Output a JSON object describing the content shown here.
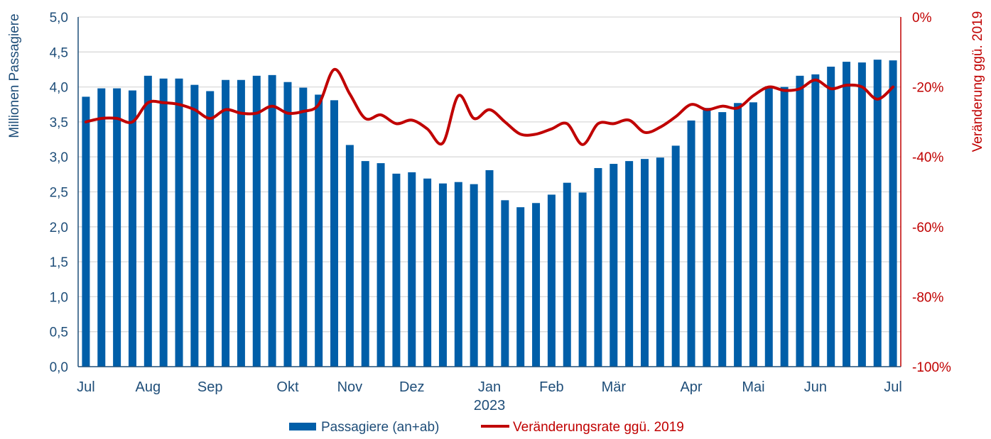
{
  "chart_data": {
    "type": "bar",
    "title": "",
    "ylabel": "Millionen Passagiere",
    "y2label": "Veränderung ggü. 2019",
    "ylim": [
      0,
      5
    ],
    "y2lim": [
      -100,
      0
    ],
    "yticks": [
      "0,0",
      "0,5",
      "1,0",
      "1,5",
      "2,0",
      "2,5",
      "3,0",
      "3,5",
      "4,0",
      "4,5",
      "5,0"
    ],
    "y2ticks": [
      "-100%",
      "-80%",
      "-60%",
      "-40%",
      "-20%",
      "0%"
    ],
    "x_labels": [
      {
        "index": 0,
        "label": "Jul"
      },
      {
        "index": 4,
        "label": "Aug"
      },
      {
        "index": 8,
        "label": "Sep"
      },
      {
        "index": 13,
        "label": "Okt"
      },
      {
        "index": 17,
        "label": "Nov"
      },
      {
        "index": 21,
        "label": "Dez"
      },
      {
        "index": 26,
        "label": "Jan"
      },
      {
        "index": 30,
        "label": "Feb"
      },
      {
        "index": 34,
        "label": "Mär"
      },
      {
        "index": 39,
        "label": "Apr"
      },
      {
        "index": 43,
        "label": "Mai"
      },
      {
        "index": 47,
        "label": "Jun"
      },
      {
        "index": 52,
        "label": "Jul"
      }
    ],
    "year_label": {
      "index": 26,
      "label": "2023"
    },
    "grid": true,
    "legend_position": "bottom-center",
    "series": [
      {
        "name": "Passagiere (an+ab)",
        "type": "bar",
        "axis": "left",
        "color": "#005ea8",
        "values": [
          3.86,
          3.98,
          3.98,
          3.95,
          4.16,
          4.12,
          4.12,
          4.03,
          3.94,
          4.1,
          4.1,
          4.16,
          4.17,
          4.07,
          3.99,
          3.89,
          3.81,
          3.17,
          2.94,
          2.91,
          2.76,
          2.78,
          2.69,
          2.62,
          2.64,
          2.61,
          2.81,
          2.38,
          2.28,
          2.34,
          2.46,
          2.63,
          2.49,
          2.84,
          2.9,
          2.94,
          2.97,
          2.99,
          3.16,
          3.52,
          3.7,
          3.64,
          3.77,
          3.78,
          4.01,
          4.0,
          4.16,
          4.18,
          4.29,
          4.36,
          4.35,
          4.39,
          4.38
        ]
      },
      {
        "name": "Veränderungsrate ggü. 2019",
        "type": "line",
        "axis": "right",
        "color": "#c00000",
        "values": [
          -30,
          -29,
          -29,
          -30,
          -24.5,
          -24.5,
          -25,
          -26.5,
          -29,
          -26.5,
          -27.5,
          -27.5,
          -25.5,
          -27.5,
          -27,
          -25,
          -15,
          -22,
          -29,
          -28,
          -30.5,
          -29.5,
          -32,
          -36,
          -22.5,
          -29,
          -26.5,
          -30,
          -33.5,
          -33.5,
          -32,
          -30.5,
          -36.5,
          -30.5,
          -30.5,
          -29.5,
          -33,
          -31.5,
          -28.5,
          -25,
          -26.5,
          -25.5,
          -26,
          -22.5,
          -20,
          -21,
          -20.5,
          -18,
          -20.5,
          -19.5,
          -20,
          -23.5,
          -20
        ]
      }
    ]
  }
}
